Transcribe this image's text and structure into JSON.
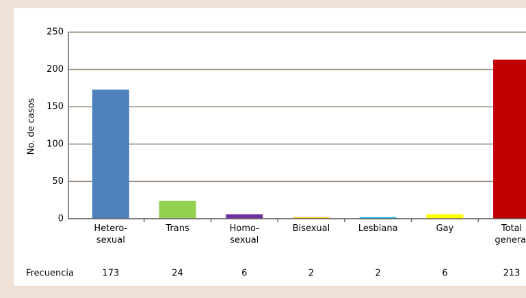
{
  "chart_data": {
    "type": "bar",
    "y_axis_label": "No. de casos",
    "categories": [
      [
        "Hetero-",
        "sexual"
      ],
      [
        "Trans"
      ],
      [
        "Homo-",
        "sexual"
      ],
      [
        "Bisexual"
      ],
      [
        "Lesbiana"
      ],
      [
        "Gay"
      ],
      [
        "Total",
        "general"
      ]
    ],
    "series": [
      {
        "name": "Frecuencia",
        "values": [
          173,
          24,
          6,
          2,
          2,
          6,
          213
        ],
        "colors": [
          "#4f81bd",
          "#92d050",
          "#7030a0",
          "#ffc000",
          "#00b0f0",
          "#ffff00",
          "#c00000"
        ]
      }
    ],
    "ylim": [
      0,
      250
    ],
    "yticks": [
      0,
      50,
      100,
      150,
      200,
      250
    ],
    "grid": true
  }
}
